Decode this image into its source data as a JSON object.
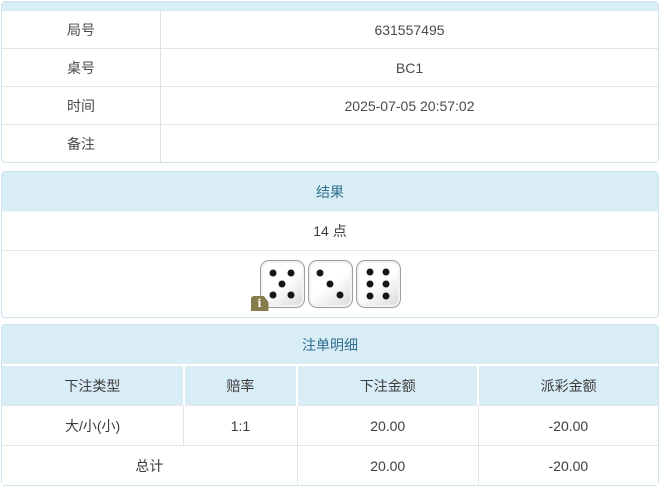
{
  "info": {
    "rows": [
      {
        "label": "局号",
        "value": "631557495"
      },
      {
        "label": "桌号",
        "value": "BC1"
      },
      {
        "label": "时间",
        "value": "2025-07-05 20:57:02"
      },
      {
        "label": "备注",
        "value": ""
      }
    ]
  },
  "result": {
    "title": "结果",
    "points": "14 点",
    "dice": [
      5,
      3,
      6
    ],
    "info_badge": "i"
  },
  "bets": {
    "title": "注单明细",
    "columns": [
      "下注类型",
      "赔率",
      "下注金额",
      "派彩金额"
    ],
    "rows": [
      {
        "type": "大/小(小)",
        "odds": "1:1",
        "amount": "20.00",
        "payout": "-20.00"
      }
    ],
    "total_label": "总计",
    "total_amount": "20.00",
    "total_payout": "-20.00"
  },
  "colors": {
    "heading_bg": "#d9edf7",
    "heading_text": "#31708f",
    "negative_text": "#e23b3b",
    "border": "#cfe3ee",
    "badge_bg": "#867b4b"
  }
}
